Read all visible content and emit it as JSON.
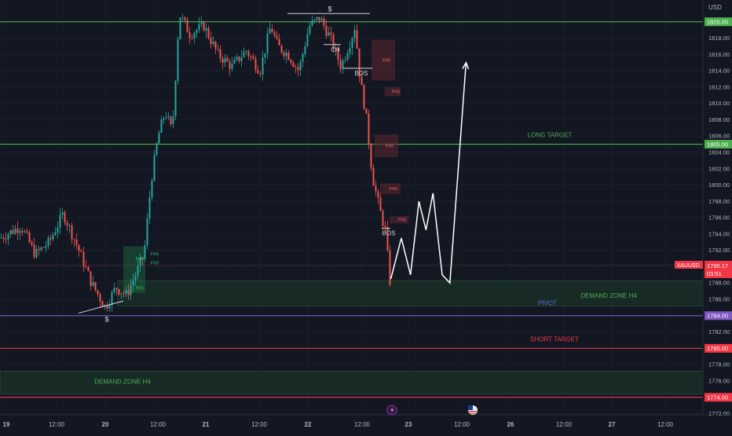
{
  "currency_label": "USD",
  "symbol_badge": {
    "name": "XAUUSD",
    "price": "1790.17",
    "countdown": "03:51"
  },
  "chart_data": {
    "type": "candlestick",
    "ylim": [
      1771,
      1823
    ],
    "y_ticks": [
      1772,
      1774,
      1776,
      1778,
      1780,
      1782,
      1784,
      1786,
      1788,
      1790,
      1792,
      1794,
      1796,
      1798,
      1800,
      1802,
      1804,
      1806,
      1808,
      1810,
      1812,
      1814,
      1816,
      1818,
      1820
    ],
    "x_ticks": [
      {
        "label": "19",
        "bold": true
      },
      {
        "label": "12:00",
        "bold": false
      },
      {
        "label": "20",
        "bold": true
      },
      {
        "label": "12:00",
        "bold": false
      },
      {
        "label": "21",
        "bold": true
      },
      {
        "label": "12:00",
        "bold": false
      },
      {
        "label": "22",
        "bold": true
      },
      {
        "label": "12:00",
        "bold": false
      },
      {
        "label": "23",
        "bold": true
      },
      {
        "label": "12:00",
        "bold": false
      },
      {
        "label": "26",
        "bold": true
      },
      {
        "label": "12:00",
        "bold": false
      },
      {
        "label": "27",
        "bold": true
      },
      {
        "label": "12:00",
        "bold": false
      }
    ],
    "price_path": [
      [
        0,
        1793.5
      ],
      [
        0.03,
        1795
      ],
      [
        0.05,
        1791.5
      ],
      [
        0.07,
        1793
      ],
      [
        0.09,
        1796.5
      ],
      [
        0.11,
        1792.5
      ],
      [
        0.13,
        1788
      ],
      [
        0.15,
        1785
      ],
      [
        0.165,
        1787.5
      ],
      [
        0.18,
        1786.5
      ],
      [
        0.195,
        1789.5
      ],
      [
        0.205,
        1791.5
      ],
      [
        0.215,
        1800.5
      ],
      [
        0.225,
        1806
      ],
      [
        0.235,
        1809
      ],
      [
        0.245,
        1806.5
      ],
      [
        0.255,
        1821
      ],
      [
        0.27,
        1818.5
      ],
      [
        0.29,
        1819.5
      ],
      [
        0.31,
        1816
      ],
      [
        0.33,
        1814.5
      ],
      [
        0.35,
        1816.5
      ],
      [
        0.37,
        1814
      ],
      [
        0.385,
        1819.5
      ],
      [
        0.395,
        1817
      ],
      [
        0.41,
        1816
      ],
      [
        0.425,
        1814
      ],
      [
        0.44,
        1819.5
      ],
      [
        0.455,
        1820.5
      ],
      [
        0.47,
        1818
      ],
      [
        0.485,
        1814.5
      ],
      [
        0.5,
        1818
      ],
      [
        0.505,
        1819.5
      ],
      [
        0.512,
        1813
      ],
      [
        0.52,
        1809
      ],
      [
        0.53,
        1801
      ],
      [
        0.54,
        1797
      ],
      [
        0.548,
        1794.5
      ],
      [
        0.555,
        1788
      ]
    ],
    "horizontal_levels": [
      {
        "price": 1820,
        "color": "#4caf50",
        "badge": "1820.00"
      },
      {
        "price": 1805,
        "color": "#4caf50",
        "badge": "1805.00",
        "label": "LONG TARGET"
      },
      {
        "price": 1784,
        "color": "#7e57c2",
        "badge": "1784.00"
      },
      {
        "price": 1780,
        "color": "#f23645",
        "badge": "1780.00",
        "label": "SHORT TARGET"
      },
      {
        "price": 1774,
        "color": "#f23645",
        "badge": "1774.00"
      }
    ],
    "zones": [
      {
        "top": 1788.3,
        "bottom": 1785.2,
        "label": "DEMAND ZONE H4"
      },
      {
        "top": 1777.2,
        "bottom": 1774.4,
        "label": "DEMAND ZONE H4"
      }
    ],
    "pivot_label": "PIVOT",
    "fvg_label": "FVG",
    "annotations": {
      "ch": "CH",
      "bos_top": "BOS",
      "bos_bottom": "BOS",
      "liq_top": "$",
      "liq_bottom": "$"
    },
    "forecast_path": [
      [
        0.556,
        1788.5
      ],
      [
        0.571,
        1793.5
      ],
      [
        0.584,
        1789
      ],
      [
        0.596,
        1798
      ],
      [
        0.606,
        1794.5
      ],
      [
        0.616,
        1799
      ],
      [
        0.629,
        1789
      ],
      [
        0.64,
        1788
      ],
      [
        0.663,
        1815
      ]
    ],
    "colors": {
      "up": "#26a69a",
      "down": "#ef5350",
      "forecast": "#ffffff"
    }
  }
}
